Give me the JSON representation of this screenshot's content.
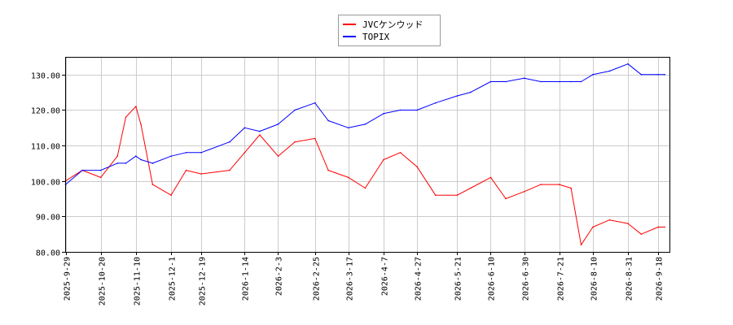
{
  "chart_data": {
    "type": "line",
    "title": "",
    "xlabel": "",
    "ylabel": "",
    "ylim": [
      80,
      135
    ],
    "y_ticks": [
      "80.00",
      "90.00",
      "100.00",
      "110.00",
      "120.00",
      "130.00"
    ],
    "x_ticks": [
      "2025-9-29",
      "2025-10-20",
      "2025-11-10",
      "2025-12-1",
      "2025-12-19",
      "2026-1-14",
      "2026-2-3",
      "2026-2-25",
      "2026-3-17",
      "2026-4-7",
      "2026-4-27",
      "2026-5-21",
      "2026-6-10",
      "2026-6-30",
      "2026-7-21",
      "2026-8-10",
      "2026-8-31",
      "2026-9-18"
    ],
    "grid": true,
    "legend_position": "top-center",
    "x": [
      "2025-9-29",
      "2025-10-9",
      "2025-10-20",
      "2025-10-30",
      "2025-11-4",
      "2025-11-10",
      "2025-11-13",
      "2025-11-20",
      "2025-12-1",
      "2025-12-10",
      "2025-12-19",
      "2026-1-5",
      "2026-1-14",
      "2026-1-23",
      "2026-2-3",
      "2026-2-13",
      "2026-2-25",
      "2026-3-5",
      "2026-3-17",
      "2026-3-27",
      "2026-4-7",
      "2026-4-17",
      "2026-4-27",
      "2026-5-8",
      "2026-5-21",
      "2026-5-29",
      "2026-6-10",
      "2026-6-19",
      "2026-6-30",
      "2026-7-10",
      "2026-7-21",
      "2026-7-28",
      "2026-8-3",
      "2026-8-10",
      "2026-8-20",
      "2026-8-31",
      "2026-9-8",
      "2026-9-18",
      "2026-9-22"
    ],
    "series": [
      {
        "name": "JVCケンウッド",
        "color": "#ff0000",
        "values": [
          100,
          103,
          101,
          107,
          118,
          121,
          116,
          99,
          96,
          103,
          102,
          103,
          108,
          113,
          107,
          111,
          112,
          103,
          101,
          98,
          106,
          108,
          104,
          96,
          96,
          98,
          101,
          95,
          97,
          99,
          99,
          98,
          82,
          87,
          89,
          88,
          85,
          87,
          87
        ]
      },
      {
        "name": "TOPIX",
        "color": "#0000ff",
        "values": [
          99,
          103,
          103,
          105,
          105,
          107,
          106,
          105,
          107,
          108,
          108,
          111,
          115,
          114,
          116,
          120,
          122,
          117,
          115,
          116,
          119,
          120,
          120,
          122,
          124,
          125,
          128,
          128,
          129,
          128,
          128,
          128,
          128,
          130,
          131,
          133,
          130,
          130,
          130
        ]
      }
    ]
  }
}
